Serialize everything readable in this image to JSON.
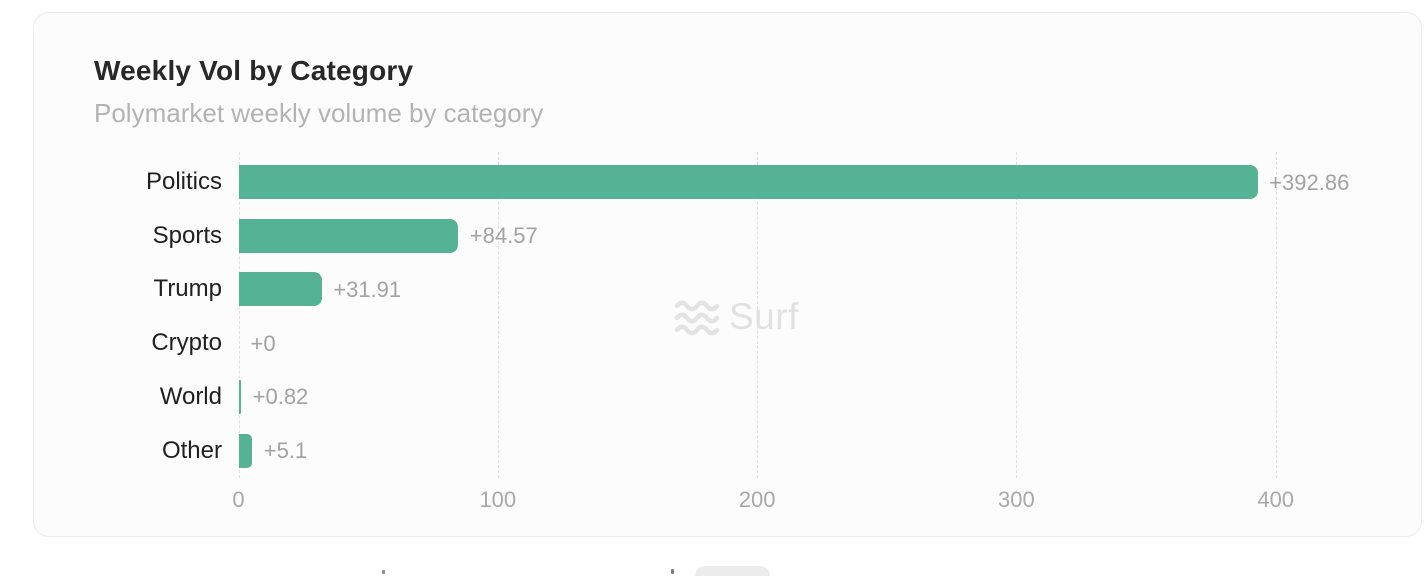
{
  "card": {
    "title": "Weekly Vol by Category",
    "subtitle": "Polymarket weekly volume by category"
  },
  "watermark": {
    "icon": "waves-icon",
    "text": "Surf"
  },
  "chart_data": {
    "type": "bar",
    "orientation": "horizontal",
    "title": "Weekly Vol by Category",
    "subtitle": "Polymarket weekly volume by category",
    "categories": [
      "Politics",
      "Sports",
      "Trump",
      "Crypto",
      "World",
      "Other"
    ],
    "values": [
      392.86,
      84.57,
      31.91,
      0,
      0.82,
      5.1
    ],
    "value_labels": [
      "+392.86",
      "+84.57",
      "+31.91",
      "+0",
      "+0.82",
      "+5.1"
    ],
    "x_ticks": [
      0,
      100,
      200,
      300,
      400
    ],
    "xlim": [
      0,
      452
    ],
    "xlabel": "",
    "ylabel": "",
    "grid": "vertical-dashed",
    "legend": "none",
    "bar_color": "#55b294",
    "category_label_color": "#202020",
    "value_label_color": "#a2a2a2",
    "tick_label_color": "#a8a8a8"
  }
}
